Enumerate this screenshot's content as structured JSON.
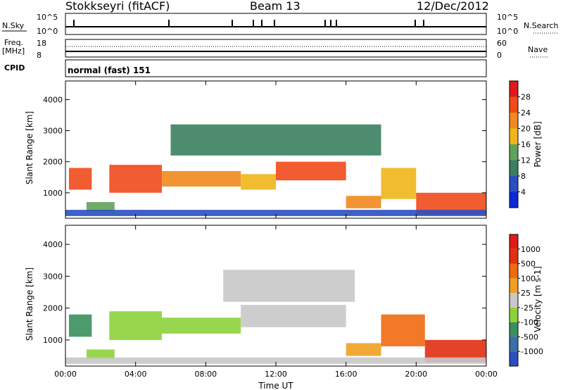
{
  "header": {
    "station": "Stokkseyri (fitACF)",
    "beam": "Beam 13",
    "date": "12/Dec/2012"
  },
  "top_panels": {
    "nsky_label": "N.Sky",
    "nsearch_label": "N.Search",
    "count_ticks": [
      "10^5",
      "10^0"
    ],
    "freq_label_1": "Freq.",
    "freq_label_2": "[MHz]",
    "freq_ticks": [
      "18",
      "8"
    ],
    "nave_label": "Nave",
    "nave_ticks": [
      "60",
      "0"
    ],
    "cpid_label": "CPID",
    "cpid_text": "normal (fast) 151"
  },
  "colors": {
    "power_scale": [
      "#0a2ad6",
      "#2a4fc0",
      "#3a7f5e",
      "#5fa35a",
      "#f0b51a",
      "#f08a1e",
      "#f04a1a",
      "#e01a1a"
    ],
    "velocity_scale": [
      "#2a4fc0",
      "#3a6fa8",
      "#3a8f5e",
      "#8cd23a",
      "#c8c8c8",
      "#f0a020",
      "#f06a10",
      "#e03010",
      "#e01a1a"
    ]
  },
  "chart_data": [
    {
      "type": "heatmap",
      "title": "Power",
      "xlabel": "",
      "ylabel": "Slant Range [km]",
      "x_ticks": [
        "00:00",
        "04:00",
        "08:00",
        "12:00",
        "16:00",
        "20:00",
        "00:00"
      ],
      "y_ticks": [
        1000,
        2000,
        3000,
        4000
      ],
      "ylim": [
        180,
        4600
      ],
      "colorbar": {
        "label": "Power [dB]",
        "ticks": [
          "4",
          "8",
          "12",
          "16",
          "20",
          "24",
          "28"
        ]
      },
      "regions": [
        {
          "t0": 0.2,
          "t1": 1.5,
          "r0": 1100,
          "r1": 1800,
          "level": 0.75
        },
        {
          "t0": 1.2,
          "t1": 2.8,
          "r0": 400,
          "r1": 700,
          "level": 0.45
        },
        {
          "t0": 2.5,
          "t1": 5.5,
          "r0": 1000,
          "r1": 1900,
          "level": 0.8
        },
        {
          "t0": 5.5,
          "t1": 10.0,
          "r0": 1200,
          "r1": 1700,
          "level": 0.7
        },
        {
          "t0": 10.0,
          "t1": 12.0,
          "r0": 1100,
          "r1": 1600,
          "level": 0.5
        },
        {
          "t0": 12.0,
          "t1": 16.0,
          "r0": 1400,
          "r1": 2000,
          "level": 0.75
        },
        {
          "t0": 16.0,
          "t1": 18.0,
          "r0": 500,
          "r1": 900,
          "level": 0.7
        },
        {
          "t0": 18.0,
          "t1": 20.0,
          "r0": 800,
          "r1": 1800,
          "level": 0.6
        },
        {
          "t0": 20.0,
          "t1": 24.0,
          "r0": 300,
          "r1": 1000,
          "level": 0.8
        },
        {
          "t0": 6.0,
          "t1": 18.0,
          "r0": 2200,
          "r1": 3200,
          "level": 0.25
        },
        {
          "t0": 0.0,
          "t1": 24.0,
          "r0": 250,
          "r1": 450,
          "level": 0.15
        }
      ]
    },
    {
      "type": "heatmap",
      "title": "Velocity",
      "xlabel": "Time UT",
      "ylabel": "Slant Range [km]",
      "x_ticks": [
        "00:00",
        "04:00",
        "08:00",
        "12:00",
        "16:00",
        "20:00",
        "00:00"
      ],
      "y_ticks": [
        1000,
        2000,
        3000,
        4000
      ],
      "ylim": [
        180,
        4600
      ],
      "colorbar": {
        "label": "Velocity [m s-1]",
        "ticks": [
          "1000",
          "500",
          "100",
          "25",
          "-25",
          "-100",
          "-500",
          "-1000"
        ]
      },
      "regions": [
        {
          "t0": 0.2,
          "t1": 1.5,
          "r0": 1100,
          "r1": 1800,
          "level": 0.3
        },
        {
          "t0": 1.2,
          "t1": 2.8,
          "r0": 400,
          "r1": 700,
          "level": 0.35
        },
        {
          "t0": 2.5,
          "t1": 5.5,
          "r0": 1000,
          "r1": 1900,
          "level": 0.35
        },
        {
          "t0": 5.5,
          "t1": 10.0,
          "r0": 1200,
          "r1": 1700,
          "level": 0.4
        },
        {
          "t0": 10.0,
          "t1": 16.0,
          "r0": 1400,
          "r1": 2100,
          "level": 0.5
        },
        {
          "t0": 16.0,
          "t1": 18.0,
          "r0": 500,
          "r1": 900,
          "level": 0.65
        },
        {
          "t0": 18.0,
          "t1": 20.5,
          "r0": 800,
          "r1": 1800,
          "level": 0.75
        },
        {
          "t0": 20.5,
          "t1": 24.0,
          "r0": 300,
          "r1": 1000,
          "level": 0.8
        },
        {
          "t0": 9.0,
          "t1": 16.5,
          "r0": 2200,
          "r1": 3200,
          "level": 0.5
        },
        {
          "t0": 0.0,
          "t1": 24.0,
          "r0": 250,
          "r1": 450,
          "level": 0.5
        }
      ]
    }
  ]
}
